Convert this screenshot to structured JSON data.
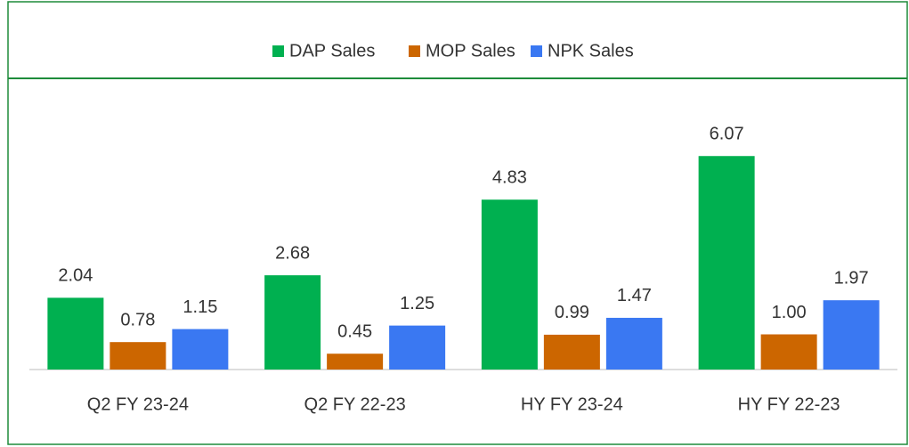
{
  "chart_data": {
    "type": "bar",
    "categories": [
      "Q2 FY 23-24",
      "Q2 FY 22-23",
      "HY FY 23-24",
      "HY FY 22-23"
    ],
    "series": [
      {
        "name": "DAP Sales",
        "color": "#00b050",
        "values": [
          2.04,
          2.68,
          4.83,
          6.07
        ],
        "value_labels": [
          "2.04",
          "2.68",
          "4.83",
          "6.07"
        ]
      },
      {
        "name": "MOP Sales",
        "color": "#cc6600",
        "values": [
          0.78,
          0.45,
          0.99,
          1.0
        ],
        "value_labels": [
          "0.78",
          "0.45",
          "0.99",
          "1.00"
        ]
      },
      {
        "name": "NPK Sales",
        "color": "#3a78f2",
        "values": [
          1.15,
          1.25,
          1.47,
          1.97
        ],
        "value_labels": [
          "1.15",
          "1.25",
          "1.47",
          "1.97"
        ]
      }
    ],
    "legend": "top"
  }
}
